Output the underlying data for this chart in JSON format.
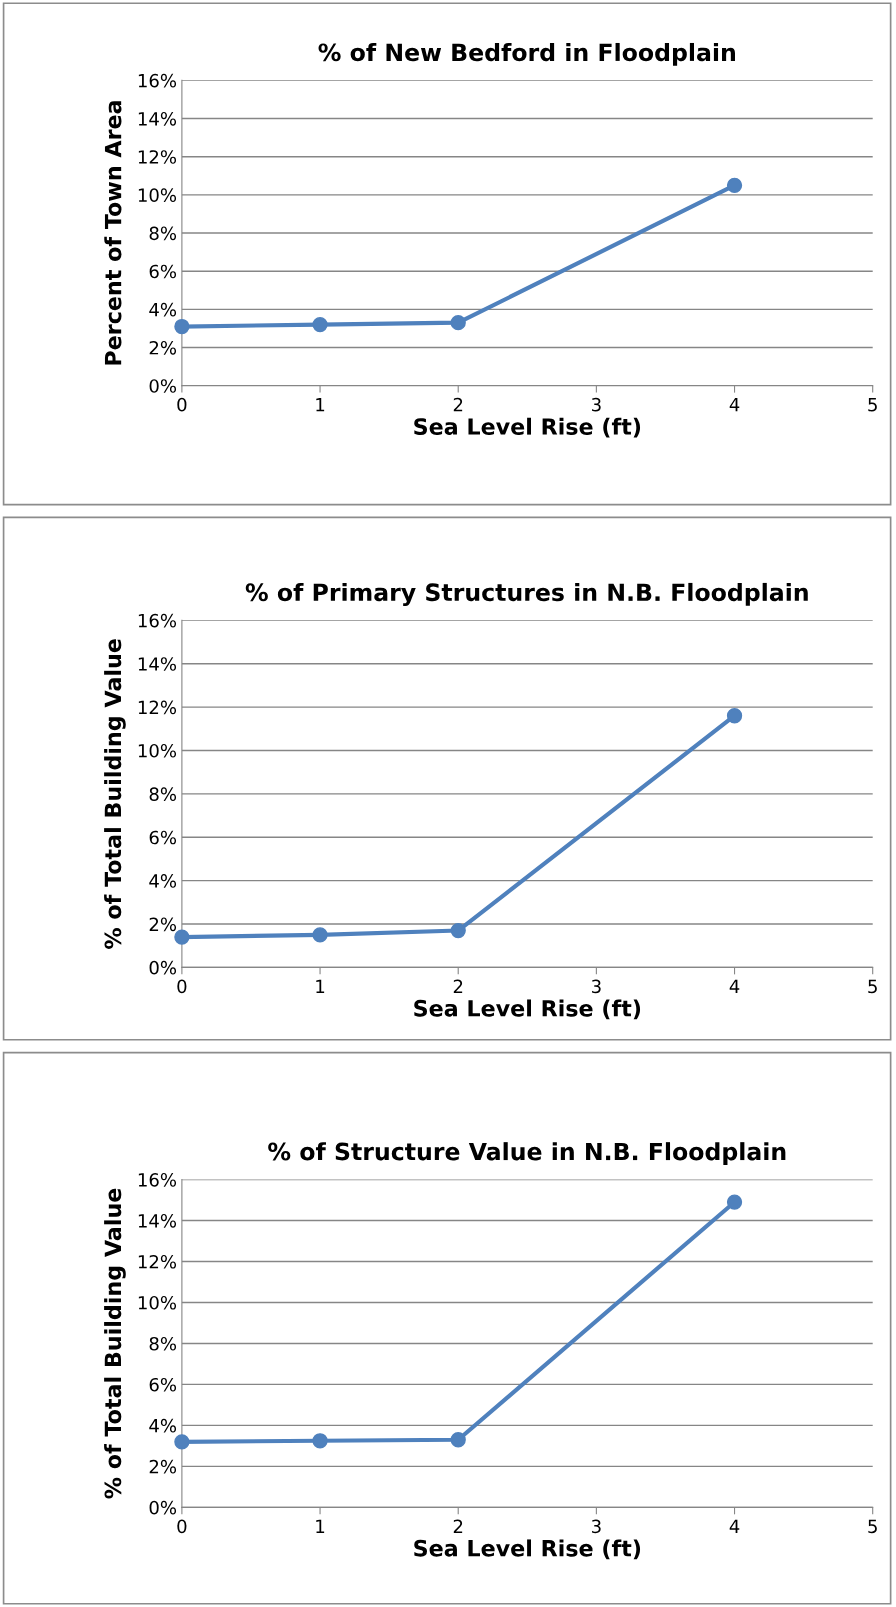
{
  "chart_data": [
    {
      "type": "line",
      "title": "% of New Bedford in Floodplain",
      "xlabel": "Sea Level Rise (ft)",
      "ylabel": "Percent of Town Area",
      "x": [
        0,
        1,
        2,
        4
      ],
      "series": [
        {
          "color": "#4f81bd",
          "values": [
            3.1,
            3.2,
            3.3,
            10.5
          ]
        }
      ],
      "xlim": [
        0,
        5
      ],
      "xticks": [
        0,
        1,
        2,
        3,
        4,
        5
      ],
      "ylim": [
        0,
        16
      ],
      "yticks": [
        {
          "value": 0,
          "label": "0%"
        },
        {
          "value": 2,
          "label": "2%"
        },
        {
          "value": 4,
          "label": "4%"
        },
        {
          "value": 6,
          "label": "6%"
        },
        {
          "value": 8,
          "label": "8%"
        },
        {
          "value": 10,
          "label": "10%"
        },
        {
          "value": 12,
          "label": "12%"
        },
        {
          "value": 14,
          "label": "14%"
        },
        {
          "value": 16,
          "label": "16%"
        }
      ],
      "grid": "y",
      "marker": "circle",
      "line_style": "solid"
    },
    {
      "type": "line",
      "title": "% of Primary Structures in N.B. Floodplain",
      "xlabel": "Sea Level Rise (ft)",
      "ylabel": "% of Total Building Value",
      "x": [
        0,
        1,
        2,
        4
      ],
      "series": [
        {
          "color": "#4f81bd",
          "values": [
            1.4,
            1.5,
            1.7,
            11.6
          ]
        }
      ],
      "xlim": [
        0,
        5
      ],
      "xticks": [
        0,
        1,
        2,
        3,
        4,
        5
      ],
      "ylim": [
        0,
        16
      ],
      "yticks": [
        {
          "value": 0,
          "label": "0%"
        },
        {
          "value": 2,
          "label": "2%"
        },
        {
          "value": 4,
          "label": "4%"
        },
        {
          "value": 6,
          "label": "6%"
        },
        {
          "value": 8,
          "label": "8%"
        },
        {
          "value": 10,
          "label": "10%"
        },
        {
          "value": 12,
          "label": "12%"
        },
        {
          "value": 14,
          "label": "14%"
        },
        {
          "value": 16,
          "label": "16%"
        }
      ],
      "grid": "y",
      "marker": "circle",
      "line_style": "solid"
    },
    {
      "type": "line",
      "title": "% of Structure Value in N.B. Floodplain",
      "xlabel": "Sea Level Rise (ft)",
      "ylabel": "% of Total Building Value",
      "x": [
        0,
        1,
        2,
        4
      ],
      "series": [
        {
          "color": "#4f81bd",
          "values": [
            3.2,
            3.25,
            3.3,
            14.9
          ]
        }
      ],
      "xlim": [
        0,
        5
      ],
      "xticks": [
        0,
        1,
        2,
        3,
        4,
        5
      ],
      "ylim": [
        0,
        16
      ],
      "yticks": [
        {
          "value": 0,
          "label": "0%"
        },
        {
          "value": 2,
          "label": "2%"
        },
        {
          "value": 4,
          "label": "4%"
        },
        {
          "value": 6,
          "label": "6%"
        },
        {
          "value": 8,
          "label": "8%"
        },
        {
          "value": 10,
          "label": "10%"
        },
        {
          "value": 12,
          "label": "12%"
        },
        {
          "value": 14,
          "label": "14%"
        },
        {
          "value": 16,
          "label": "16%"
        }
      ],
      "grid": "y",
      "marker": "circle",
      "line_style": "solid"
    }
  ]
}
